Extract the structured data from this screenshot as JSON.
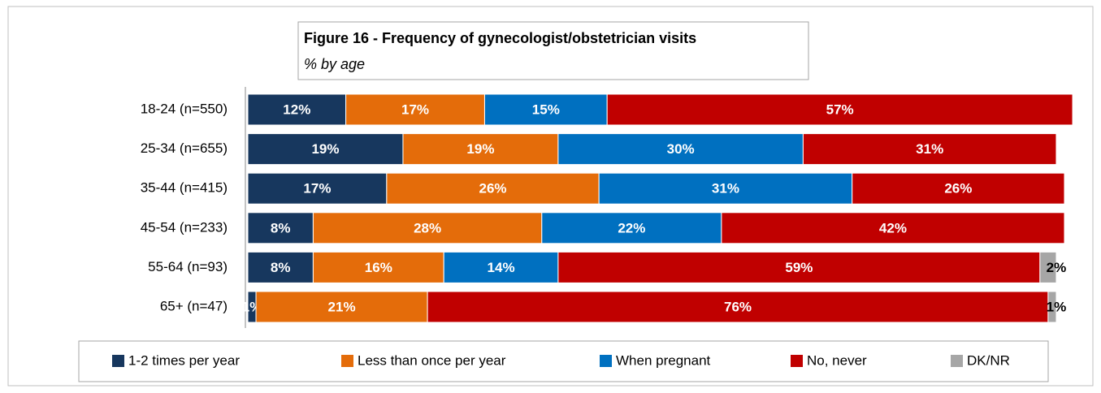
{
  "chart_data": {
    "type": "stacked-bar-horizontal",
    "title": "Figure 16 - Frequency of gynecologist/obstetrician visits",
    "subtitle": "% by age",
    "categories": [
      "18-24 (n=550)",
      "25-34 (n=655)",
      "35-44 (n=415)",
      "45-54 (n=233)",
      "55-64 (n=93)",
      "65+ (n=47)"
    ],
    "xlim": [
      0,
      100
    ],
    "legend": "bottom",
    "series": [
      {
        "name": "1-2 times per year",
        "color": "#17375e",
        "values": [
          12,
          19,
          17,
          8,
          8,
          1
        ],
        "value_labels": [
          "12%",
          "19%",
          "17%",
          "8%",
          "8%",
          "1%"
        ]
      },
      {
        "name": "Less than once per year",
        "color": "#e46c0a",
        "values": [
          17,
          19,
          26,
          28,
          16,
          21
        ],
        "value_labels": [
          "17%",
          "19%",
          "26%",
          "28%",
          "16%",
          "21%"
        ]
      },
      {
        "name": "When pregnant",
        "color": "#0070c0",
        "values": [
          15,
          30,
          31,
          22,
          14,
          null
        ],
        "value_labels": [
          "15%",
          "30%",
          "31%",
          "22%",
          "14%",
          null
        ]
      },
      {
        "name": "No, never",
        "color": "#c00000",
        "values": [
          57,
          31,
          26,
          42,
          59,
          76
        ],
        "value_labels": [
          "57%",
          "31%",
          "26%",
          "42%",
          "59%",
          "76%"
        ]
      },
      {
        "name": "DK/NR",
        "color": "#a6a6a6",
        "values": [
          null,
          null,
          null,
          null,
          2,
          1
        ],
        "value_labels": [
          null,
          null,
          null,
          null,
          "2%",
          "1%"
        ]
      }
    ]
  }
}
